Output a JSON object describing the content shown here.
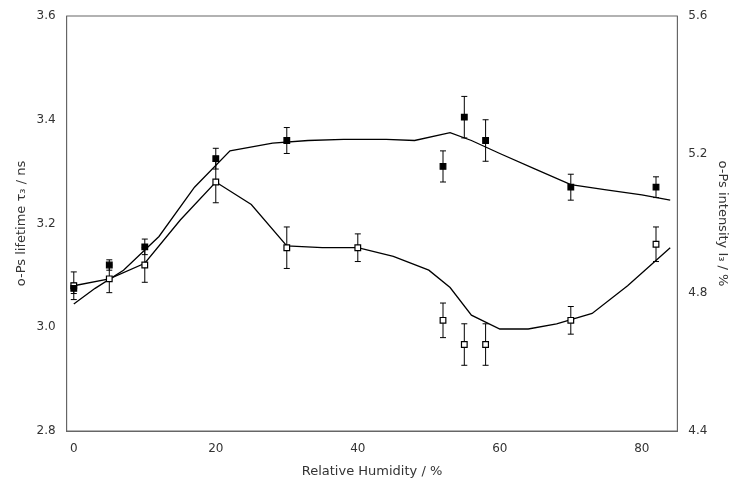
{
  "chart_data": {
    "type": "scatter",
    "xlabel": "Relative Humidity / %",
    "ylabel": "o-Ps lifetime τ₃ / ns",
    "y2label": "o-Ps intensity I₃ / %",
    "xlim": [
      -1,
      85
    ],
    "xticks": [
      0,
      20,
      40,
      60,
      80
    ],
    "ylim": [
      2.8,
      3.6
    ],
    "yticks": [
      2.8,
      {
        "value": 3.0,
        "label": "3.0"
      },
      3.2,
      3.4,
      3.6
    ],
    "y2lim": [
      4.4,
      5.6
    ],
    "y2ticks": [
      4.4,
      4.8,
      5.2,
      5.6
    ],
    "grid": false,
    "series": [
      {
        "type": "line",
        "line_style": "solid",
        "color": "#000000",
        "axis": "y",
        "x": [
          0,
          3,
          7,
          12,
          17,
          22,
          28,
          33,
          38,
          44,
          48,
          53,
          56,
          60,
          65,
          70,
          75,
          80,
          84
        ],
        "values": [
          3.045,
          3.075,
          3.11,
          3.175,
          3.27,
          3.34,
          3.355,
          3.36,
          3.362,
          3.362,
          3.36,
          3.375,
          3.36,
          3.335,
          3.305,
          3.275,
          3.265,
          3.255,
          3.245
        ]
      },
      {
        "type": "scatter",
        "marker": "square",
        "color": "#000000",
        "axis": "y",
        "x": [
          0,
          5,
          10,
          20,
          30,
          52,
          55,
          58,
          70,
          82
        ],
        "values": [
          3.075,
          3.12,
          3.155,
          3.325,
          3.36,
          3.31,
          3.405,
          3.36,
          3.27,
          3.27
        ],
        "errors": [
          0.01,
          0.01,
          0.015,
          0.02,
          0.025,
          0.03,
          0.04,
          0.04,
          0.025,
          0.02
        ]
      },
      {
        "type": "line",
        "line_style": "solid",
        "color": "#000000",
        "axis": "y2",
        "x": [
          0,
          5,
          10,
          15,
          20,
          25,
          30,
          35,
          40,
          45,
          50,
          53,
          56,
          60,
          64,
          68,
          73,
          78,
          84
        ],
        "values": [
          4.82,
          4.84,
          4.885,
          5.01,
          5.12,
          5.055,
          4.935,
          4.93,
          4.93,
          4.905,
          4.865,
          4.815,
          4.735,
          4.695,
          4.695,
          4.71,
          4.74,
          4.82,
          4.93
        ]
      },
      {
        "type": "scatter",
        "marker": "open_square",
        "color": "#000000",
        "axis": "y2",
        "x": [
          0,
          5,
          10,
          20,
          30,
          40,
          52,
          55,
          58,
          70,
          82
        ],
        "values": [
          4.82,
          4.84,
          4.88,
          5.12,
          4.93,
          4.93,
          4.72,
          4.65,
          4.65,
          4.72,
          4.94
        ],
        "errors": [
          0.04,
          0.04,
          0.05,
          0.06,
          0.06,
          0.04,
          0.05,
          0.06,
          0.06,
          0.04,
          0.05
        ]
      }
    ]
  }
}
